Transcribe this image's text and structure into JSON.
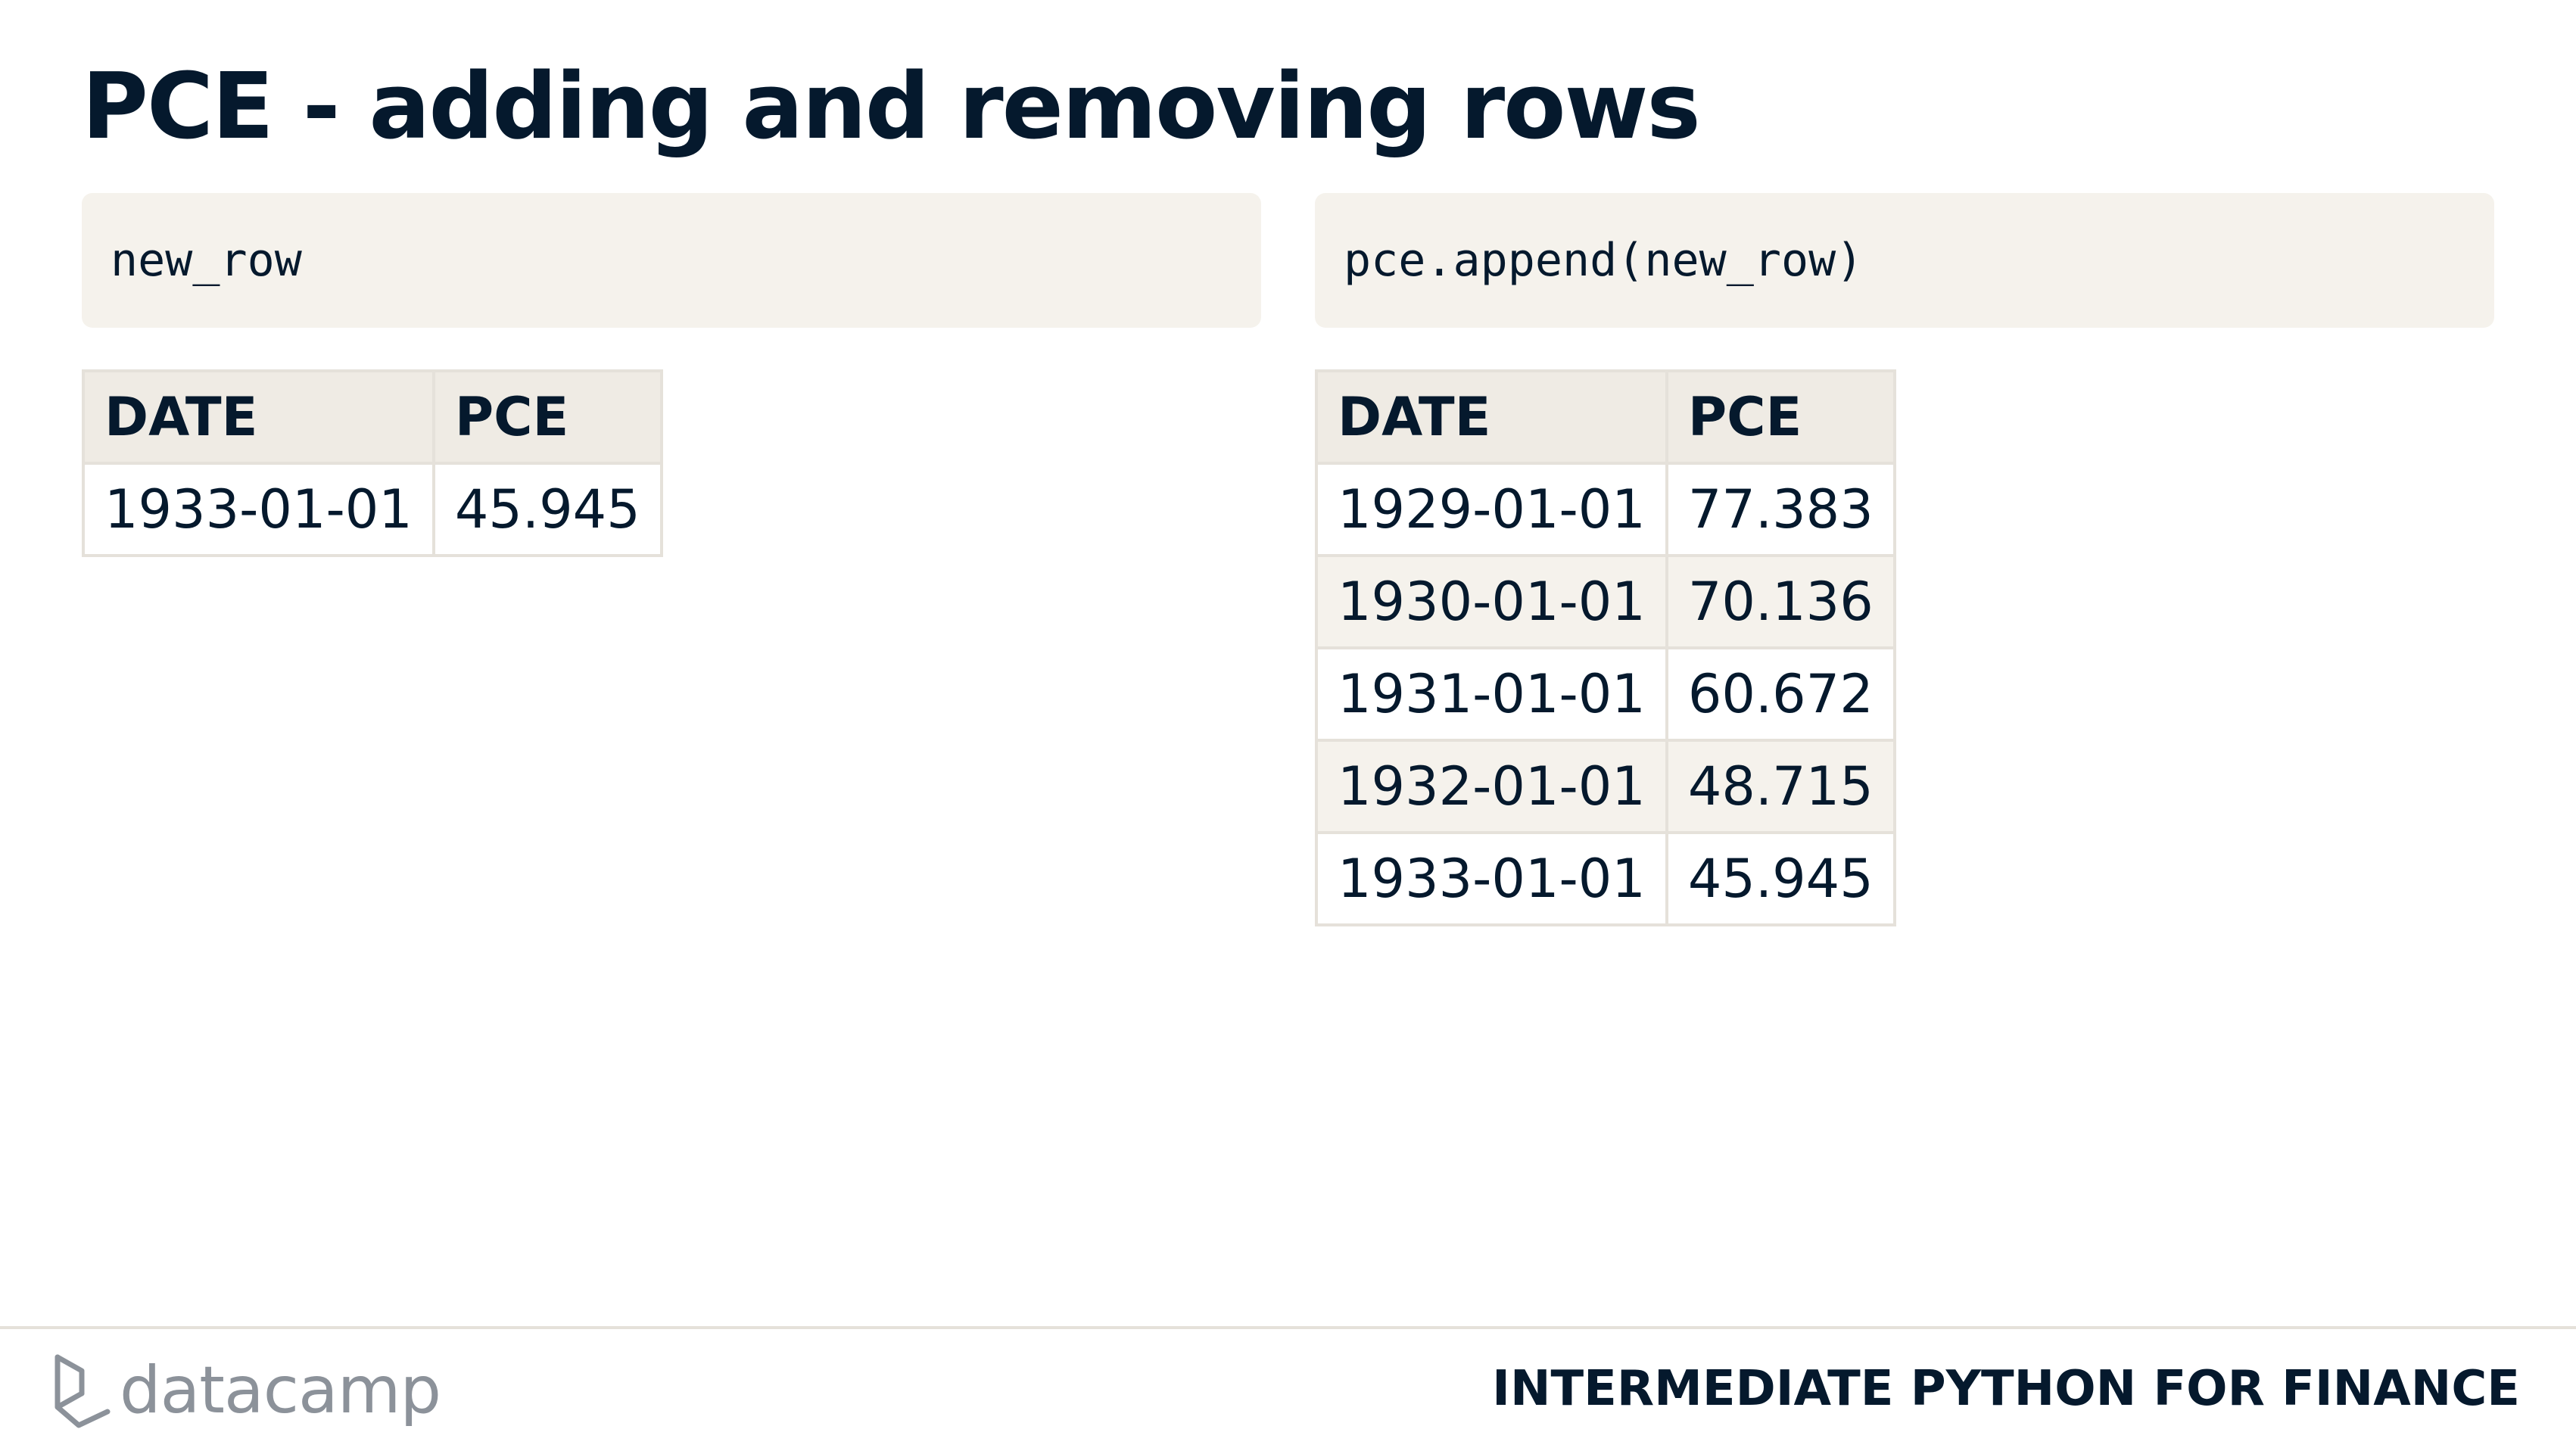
{
  "title": "PCE - adding and removing rows",
  "code": {
    "left": "new_row",
    "right": "pce.append(new_row)"
  },
  "left_table": {
    "columns": [
      "DATE",
      "PCE"
    ],
    "rows": [
      [
        "1933-01-01",
        "45.945"
      ]
    ]
  },
  "right_table": {
    "columns": [
      "DATE",
      "PCE"
    ],
    "rows": [
      [
        "1929-01-01",
        "77.383"
      ],
      [
        "1930-01-01",
        "70.136"
      ],
      [
        "1931-01-01",
        "60.672"
      ],
      [
        "1932-01-01",
        "48.715"
      ],
      [
        "1933-01-01",
        "45.945"
      ]
    ]
  },
  "footer": {
    "logo_text": "datacamp",
    "logo_icon": "datacamp-logo-icon",
    "course": "INTERMEDIATE PYTHON FOR FINANCE"
  },
  "colors": {
    "text": "#05192d",
    "code_bg": "#f5f2ec",
    "header_bg": "#efebe4",
    "border": "#e5e1da",
    "logo": "#8c929a"
  }
}
